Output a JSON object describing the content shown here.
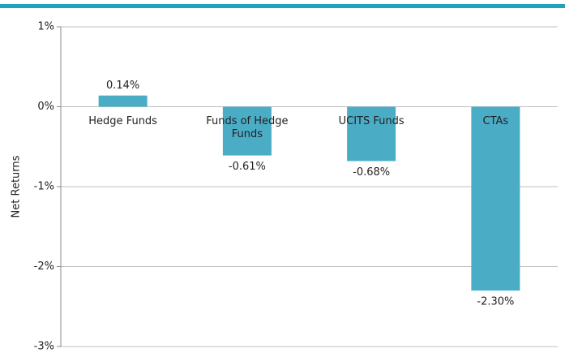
{
  "chart_data": {
    "type": "bar",
    "y_label": "Net Returns",
    "categories": [
      "Hedge Funds",
      "Funds of Hedge Funds",
      "UCITS Funds",
      "CTAs"
    ],
    "values": [
      0.14,
      -0.61,
      -0.68,
      -2.3
    ],
    "value_labels": [
      "0.14%",
      "-0.61%",
      "-0.68%",
      "-2.30%"
    ],
    "color": "#4bacc6",
    "ylim": [
      -3,
      1
    ],
    "yticks": [
      {
        "value": 1,
        "label": "1%"
      },
      {
        "value": 0,
        "label": "0%"
      },
      {
        "value": -1,
        "label": "-1%"
      },
      {
        "value": -2,
        "label": "-2%"
      },
      {
        "value": -3,
        "label": "-3%"
      }
    ],
    "grid": true
  }
}
